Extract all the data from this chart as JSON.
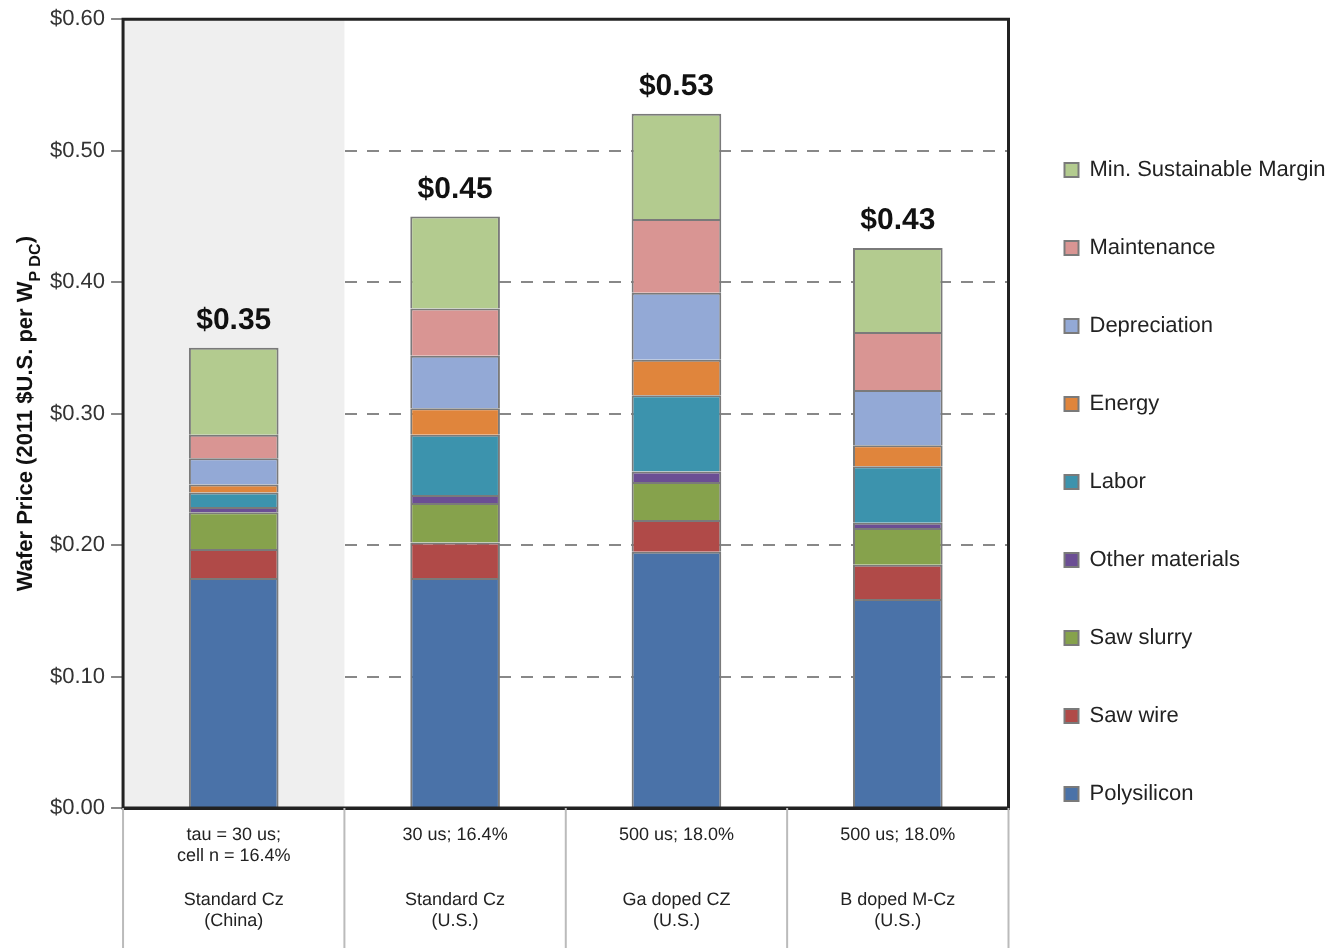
{
  "chart_data": {
    "type": "bar",
    "stacked": true,
    "ylabel": "Wafer Price (2011 $U.S. per W$_{P DC}$)",
    "categories": [
      "tau = 30 us;\ncell n = 16.4%\n\nStandard Cz\n(China)",
      "30 us; 16.4%\n\n\nStandard Cz\n(U.S.)",
      "500 us; 18.0%\n\n\nGa doped CZ\n(U.S.)",
      "500 us; 18.0%\n\n\nB doped M-Cz\n(U.S.)"
    ],
    "series": [
      {
        "name": "Polysilicon",
        "color": "#4a72a8",
        "values": [
          0.175,
          0.175,
          0.195,
          0.159
        ]
      },
      {
        "name": "Saw wire",
        "color": "#b04a48",
        "values": [
          0.022,
          0.027,
          0.024,
          0.026
        ]
      },
      {
        "name": "Saw slurry",
        "color": "#86a24c",
        "values": [
          0.028,
          0.03,
          0.029,
          0.028
        ]
      },
      {
        "name": "Other materials",
        "color": "#6b4e94",
        "values": [
          0.004,
          0.006,
          0.008,
          0.004
        ]
      },
      {
        "name": "Labor",
        "color": "#3c93ad",
        "values": [
          0.011,
          0.046,
          0.058,
          0.043
        ]
      },
      {
        "name": "Energy",
        "color": "#e0853c",
        "values": [
          0.006,
          0.02,
          0.027,
          0.016
        ]
      },
      {
        "name": "Depreciation",
        "color": "#93a9d6",
        "values": [
          0.02,
          0.04,
          0.051,
          0.042
        ]
      },
      {
        "name": "Maintenance",
        "color": "#d99593",
        "values": [
          0.018,
          0.036,
          0.056,
          0.044
        ]
      },
      {
        "name": "Min. Sustainable Margin",
        "color": "#b3cb8f",
        "values": [
          0.066,
          0.07,
          0.08,
          0.064
        ]
      }
    ],
    "totals": [
      "$0.35",
      "$0.45",
      "$0.53",
      "$0.43"
    ],
    "ylim": [
      0,
      0.6
    ],
    "yticks": [
      {
        "value": 0,
        "label": "$0.00"
      },
      {
        "value": 0.1,
        "label": "$0.10"
      },
      {
        "value": 0.2,
        "label": "$0.20"
      },
      {
        "value": 0.3,
        "label": "$0.30"
      },
      {
        "value": 0.4,
        "label": "$0.40"
      },
      {
        "value": 0.5,
        "label": "$0.50"
      },
      {
        "value": 0.6,
        "label": "$0.60"
      }
    ],
    "bands": [
      {
        "axis": "x",
        "from": "tau = 30 us;\ncell n = 16.4%\n\nStandard Cz\n(China)",
        "to": "tau = 30 us;\ncell n = 16.4%\n\nStandard Cz\n(China)",
        "color": "#efefef"
      }
    ],
    "grid": "y",
    "legend": "right"
  }
}
